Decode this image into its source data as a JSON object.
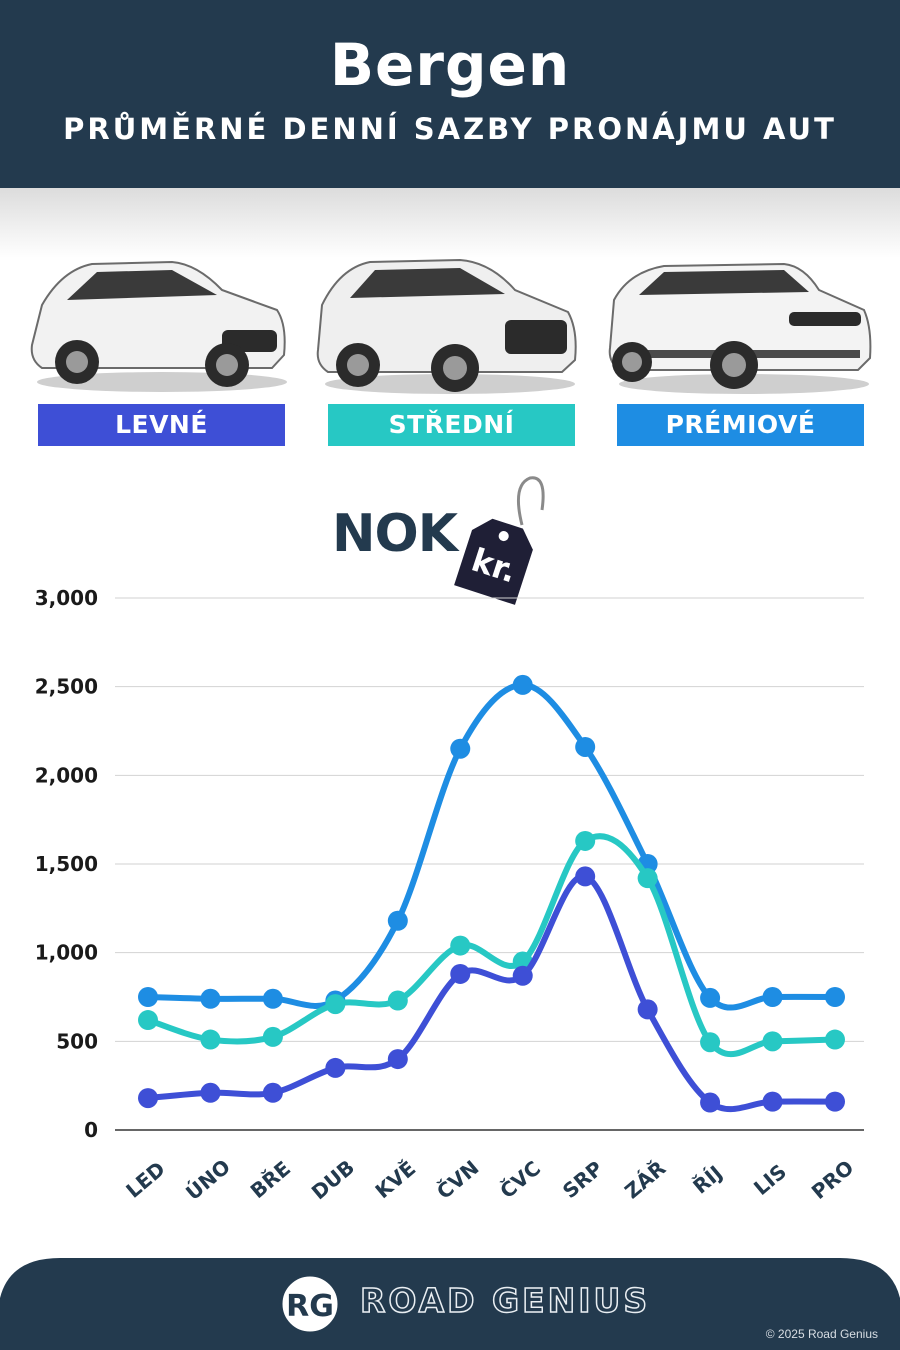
{
  "header": {
    "city": "Bergen",
    "subtitle": "PRŮMĚRNÉ DENNÍ SAZBY PRONÁJMU AUT"
  },
  "categories": [
    {
      "label": "LEVNÉ",
      "color": "#3e4fd6"
    },
    {
      "label": "STŘEDNÍ",
      "color": "#27c8c4"
    },
    {
      "label": "PRÉMIOVÉ",
      "color": "#1e8de3"
    }
  ],
  "currency": {
    "label": "NOK",
    "tag_text": "kr."
  },
  "chart_data": {
    "type": "line",
    "categories": [
      "LED",
      "ÚNO",
      "BŘE",
      "DUB",
      "KVĚ",
      "ČVN",
      "ČVC",
      "SRP",
      "ZÁŘ",
      "ŘÍJ",
      "LIS",
      "PRO"
    ],
    "yticks": [
      "0",
      "500",
      "1,000",
      "1,500",
      "2,000",
      "2,500",
      "3,000"
    ],
    "ylim": [
      0,
      3000
    ],
    "grid": true,
    "series": [
      {
        "name": "PRÉMIOVÉ",
        "color": "#1e8de3",
        "values": [
          750,
          740,
          740,
          730,
          1180,
          2150,
          2510,
          2160,
          1500,
          745,
          750,
          750
        ]
      },
      {
        "name": "STŘEDNÍ",
        "color": "#27c8c4",
        "values": [
          620,
          510,
          525,
          710,
          730,
          1040,
          950,
          1630,
          1420,
          495,
          500,
          510
        ]
      },
      {
        "name": "LEVNÉ",
        "color": "#3e4fd6",
        "values": [
          180,
          210,
          210,
          350,
          400,
          880,
          870,
          1430,
          680,
          155,
          160,
          160
        ]
      }
    ]
  },
  "footer": {
    "logo_text": "RG",
    "brand": "ROAD GENIUS",
    "copyright": "© 2025 Road Genius"
  }
}
